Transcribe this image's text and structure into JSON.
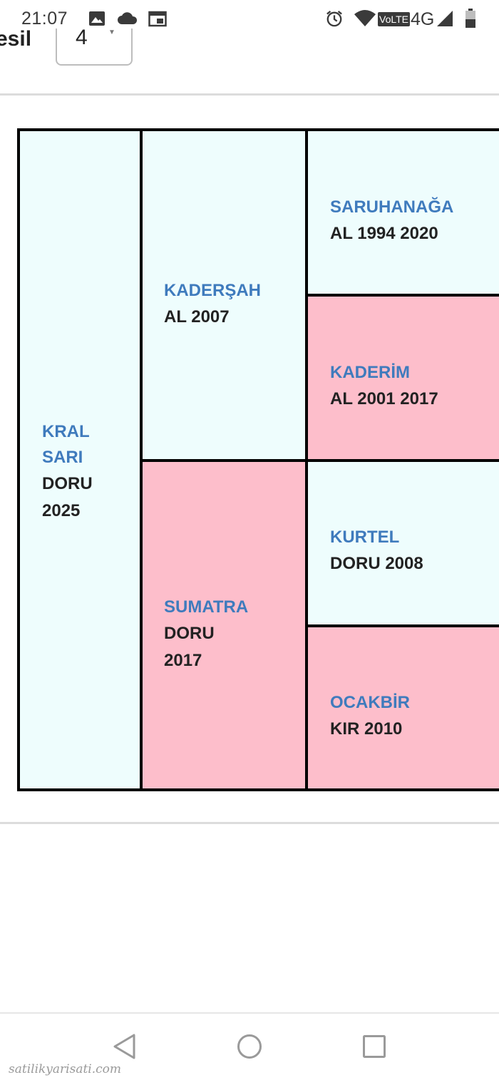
{
  "status_bar": {
    "time": "21:07",
    "network_label": "4G",
    "volte_label": "VoLTE"
  },
  "header": {
    "partial_label": "esil",
    "select_value": "4"
  },
  "pedigree": {
    "colors": {
      "blue": "#eefdfd",
      "pink": "#fdbecb",
      "name_color": "#3f7bbd"
    },
    "horses": [
      {
        "name_line1": "KRAL",
        "name_line2": "SARI",
        "info_line1": "DORU",
        "info_line2": "2025"
      },
      {
        "name": "KADERŞAH",
        "info": "AL 2007"
      },
      {
        "name": "SUMATRA",
        "info_line1": "DORU",
        "info_line2": "2017"
      },
      {
        "name": "SARUHANAĞA",
        "info": "AL 1994 2020"
      },
      {
        "name": "KADERİM",
        "info": "AL 2001 2017"
      },
      {
        "name": "KURTEL",
        "info": "DORU 2008"
      },
      {
        "name": "OCAKBİR",
        "info": "KIR 2010"
      }
    ]
  },
  "watermark": "satilikyarisati.com"
}
